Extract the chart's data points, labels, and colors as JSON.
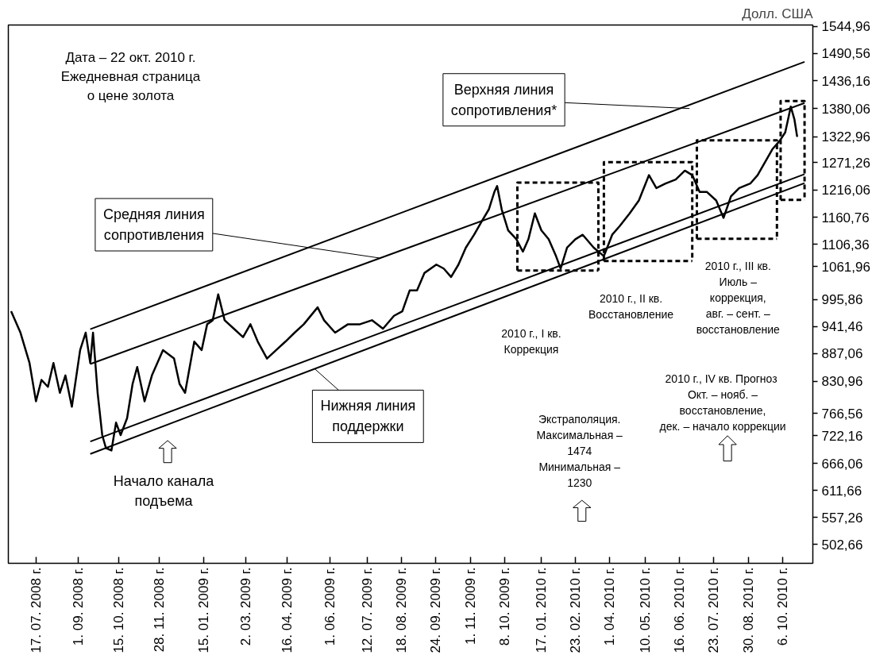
{
  "chart_data": {
    "type": "line",
    "title": "Дата – 22 окт. 2010 г.\nЕжедневная страница\nо цене золота",
    "ylabel": "Долл. США",
    "xlim": [
      "2008-06-17",
      "2010-11-08"
    ],
    "xticks": [
      {
        "value": "2008-07-17",
        "label": "17. 07. 2008 г."
      },
      {
        "value": "2008-09-01",
        "label": "1. 09. 2008 г."
      },
      {
        "value": "2008-10-15",
        "label": "15. 10. 2008 г."
      },
      {
        "value": "2008-11-28",
        "label": "28. 11. 2008 г."
      },
      {
        "value": "2009-01-15",
        "label": "15. 01. 2009 г."
      },
      {
        "value": "2009-03-02",
        "label": "2. 03. 2009 г."
      },
      {
        "value": "2009-04-16",
        "label": "16. 04. 2009 г."
      },
      {
        "value": "2009-06-01",
        "label": "1. 06. 2009 г."
      },
      {
        "value": "2009-07-12",
        "label": "12. 07. 2009 г."
      },
      {
        "value": "2009-08-18",
        "label": "18. 08. 2009 г."
      },
      {
        "value": "2009-09-24",
        "label": "24. 09. 2009 г."
      },
      {
        "value": "2009-11-01",
        "label": "1. 11. 2009 г."
      },
      {
        "value": "2009-12-08",
        "label": "8. 10. 2009 г."
      },
      {
        "value": "2010-01-17",
        "label": "17. 01. 2010 г."
      },
      {
        "value": "2010-02-23",
        "label": "23. 02. 2010 г."
      },
      {
        "value": "2010-04-01",
        "label": "1. 04. 2010 г."
      },
      {
        "value": "2010-05-10",
        "label": "10. 05. 2010 г."
      },
      {
        "value": "2010-06-16",
        "label": "16. 06. 2010 г."
      },
      {
        "value": "2010-07-23",
        "label": "23. 07. 2010 г."
      },
      {
        "value": "2010-08-30",
        "label": "30. 08. 2010 г."
      },
      {
        "value": "2010-10-06",
        "label": "6. 10. 2010 г."
      }
    ],
    "ylim": [
      465,
      1548
    ],
    "yticks": [
      {
        "value": 1544.96,
        "label": "1544,96"
      },
      {
        "value": 1490.56,
        "label": "1490,56"
      },
      {
        "value": 1436.16,
        "label": "1436,16"
      },
      {
        "value": 1380.06,
        "label": "1380,06"
      },
      {
        "value": 1322.96,
        "label": "1322,96"
      },
      {
        "value": 1271.26,
        "label": "1271,26"
      },
      {
        "value": 1216.06,
        "label": "1216,06"
      },
      {
        "value": 1160.76,
        "label": "1160,76"
      },
      {
        "value": 1106.36,
        "label": "1106,36"
      },
      {
        "value": 1061.96,
        "label": "1061,96"
      },
      {
        "value": 995.86,
        "label": "995,86"
      },
      {
        "value": 941.46,
        "label": "941,46"
      },
      {
        "value": 887.06,
        "label": "887,06"
      },
      {
        "value": 830.96,
        "label": "830,96"
      },
      {
        "value": 766.56,
        "label": "766,56"
      },
      {
        "value": 722.16,
        "label": "722,16"
      },
      {
        "value": 666.06,
        "label": "666,06"
      },
      {
        "value": 611.66,
        "label": "611,66"
      },
      {
        "value": 557.26,
        "label": "557,26"
      },
      {
        "value": 502.66,
        "label": "502,66"
      }
    ],
    "grid": false,
    "line_style": "solid",
    "series": [
      {
        "color": "#000000",
        "x": [
          "2008-06-20",
          "2008-06-30",
          "2008-07-10",
          "2008-07-17",
          "2008-07-23",
          "2008-07-30",
          "2008-08-05",
          "2008-08-12",
          "2008-08-18",
          "2008-08-25",
          "2008-09-03",
          "2008-09-09",
          "2008-09-14",
          "2008-09-17",
          "2008-09-22",
          "2008-09-27",
          "2008-10-01",
          "2008-10-07",
          "2008-10-12",
          "2008-10-17",
          "2008-10-24",
          "2008-10-30",
          "2008-11-04",
          "2008-11-12",
          "2008-11-20",
          "2008-12-02",
          "2008-12-14",
          "2008-12-20",
          "2008-12-26",
          "2009-01-05",
          "2009-01-13",
          "2009-01-19",
          "2009-01-25",
          "2009-01-31",
          "2009-02-07",
          "2009-02-17",
          "2009-02-27",
          "2009-03-07",
          "2009-03-15",
          "2009-03-25",
          "2009-04-04",
          "2009-04-14",
          "2009-04-24",
          "2009-05-04",
          "2009-05-19",
          "2009-05-26",
          "2009-06-07",
          "2009-06-21",
          "2009-07-04",
          "2009-07-17",
          "2009-07-29",
          "2009-08-10",
          "2009-08-19",
          "2009-08-27",
          "2009-09-04",
          "2009-09-12",
          "2009-09-25",
          "2009-10-03",
          "2009-10-11",
          "2009-10-19",
          "2009-10-27",
          "2009-11-05",
          "2009-11-13",
          "2009-11-21",
          "2009-11-27",
          "2009-11-30",
          "2009-12-05",
          "2009-12-12",
          "2009-12-21",
          "2009-12-28",
          "2010-01-03",
          "2010-01-10",
          "2010-01-17",
          "2010-01-25",
          "2010-02-02",
          "2010-02-07",
          "2010-02-14",
          "2010-02-23",
          "2010-03-03",
          "2010-03-15",
          "2010-03-26",
          "2010-04-04",
          "2010-04-12",
          "2010-04-23",
          "2010-05-03",
          "2010-05-14",
          "2010-05-22",
          "2010-06-01",
          "2010-06-12",
          "2010-06-22",
          "2010-06-30",
          "2010-07-08",
          "2010-07-16",
          "2010-07-26",
          "2010-08-03",
          "2010-08-11",
          "2010-08-20",
          "2010-09-01",
          "2010-09-09",
          "2010-09-17",
          "2010-09-25",
          "2010-10-03",
          "2010-10-09",
          "2010-10-13",
          "2010-10-15",
          "2010-10-19",
          "2010-10-22"
        ],
        "values": [
          972,
          930,
          868,
          791,
          834,
          820,
          868,
          808,
          843,
          780,
          894,
          929,
          868,
          929,
          808,
          723,
          697,
          692,
          748,
          723,
          757,
          826,
          860,
          791,
          843,
          894,
          877,
          826,
          808,
          911,
          894,
          946,
          954,
          1006,
          954,
          937,
          920,
          946,
          911,
          877,
          894,
          911,
          929,
          946,
          980,
          954,
          929,
          946,
          946,
          954,
          937,
          963,
          972,
          1014,
          1014,
          1049,
          1066,
          1058,
          1041,
          1066,
          1100,
          1126,
          1152,
          1177,
          1212,
          1224,
          1177,
          1135,
          1117,
          1092,
          1117,
          1169,
          1135,
          1117,
          1083,
          1058,
          1100,
          1117,
          1126,
          1100,
          1083,
          1126,
          1143,
          1169,
          1195,
          1246,
          1220,
          1229,
          1237,
          1255,
          1246,
          1212,
          1212,
          1195,
          1160,
          1203,
          1220,
          1229,
          1246,
          1272,
          1298,
          1315,
          1332,
          1366,
          1384,
          1358,
          1323
        ]
      },
      {
        "color": "#000000",
        "x": [
          "2008-09-14",
          "2010-10-30"
        ],
        "values": [
          936,
          1474
        ]
      },
      {
        "color": "#000000",
        "x": [
          "2008-09-14",
          "2010-10-30"
        ],
        "values": [
          866,
          1391
        ]
      },
      {
        "color": "#000000",
        "x": [
          "2008-09-14",
          "2010-10-30"
        ],
        "values": [
          710,
          1248
        ]
      },
      {
        "color": "#000000",
        "x": [
          "2008-09-14",
          "2010-10-30"
        ],
        "values": [
          685,
          1230
        ]
      },
      {
        "color": "#000000",
        "line_style": "dashed",
        "x": [
          "2009-12-22",
          "2009-12-22",
          "2010-03-20",
          "2010-03-20"
        ],
        "values": [
          1054,
          1231,
          1231,
          1054
        ]
      },
      {
        "color": "#000000",
        "line_style": "dashed",
        "x": [
          "2009-12-22",
          "2010-03-20"
        ],
        "values": [
          1054,
          1054
        ]
      },
      {
        "color": "#000000",
        "line_style": "dashed",
        "x": [
          "2010-03-26",
          "2010-03-26",
          "2010-06-30",
          "2010-06-30"
        ],
        "values": [
          1073,
          1272,
          1272,
          1073
        ]
      },
      {
        "color": "#000000",
        "line_style": "dashed",
        "x": [
          "2010-03-26",
          "2010-06-30"
        ],
        "values": [
          1073,
          1073
        ]
      },
      {
        "color": "#000000",
        "line_style": "dashed",
        "x": [
          "2010-07-05",
          "2010-07-05",
          "2010-09-30",
          "2010-09-30"
        ],
        "values": [
          1118,
          1316,
          1316,
          1118
        ]
      },
      {
        "color": "#000000",
        "line_style": "dashed",
        "x": [
          "2010-07-05",
          "2010-09-30"
        ],
        "values": [
          1118,
          1118
        ]
      },
      {
        "color": "#000000",
        "line_style": "dashed",
        "x": [
          "2010-10-04",
          "2010-10-04",
          "2010-10-30",
          "2010-10-30"
        ],
        "values": [
          1196,
          1395,
          1395,
          1196
        ]
      },
      {
        "color": "#000000",
        "line_style": "dashed",
        "x": [
          "2010-10-04",
          "2010-10-30"
        ],
        "values": [
          1196,
          1196
        ]
      }
    ],
    "annotations": [
      {
        "text": "Верхняя линия\nсопротивления*",
        "x": "2010-06-27",
        "y": 1380
      },
      {
        "text": "Средняя линия\nсопротивления",
        "x": "2009-07-26",
        "y": 1079
      },
      {
        "text": "Нижняя линия\nподдержки",
        "x": "2009-05-16",
        "y": 856
      },
      "Начало канала\nподъема",
      "2010 г., I кв.\nКоррекция",
      "2010 г., II кв.\nВосстановление",
      "2010 г., III кв.\nИюль –\nкоррекция,\nавг. – сент. –\nвосстановление",
      "2010 г., IV кв.  Прогноз\nОкт. – нояб. –\nвосстановление,\nдек. – начало коррекции",
      "Экстраполяция.\nМаксимальная –\n1474\nМинимальная –\n1230"
    ]
  }
}
